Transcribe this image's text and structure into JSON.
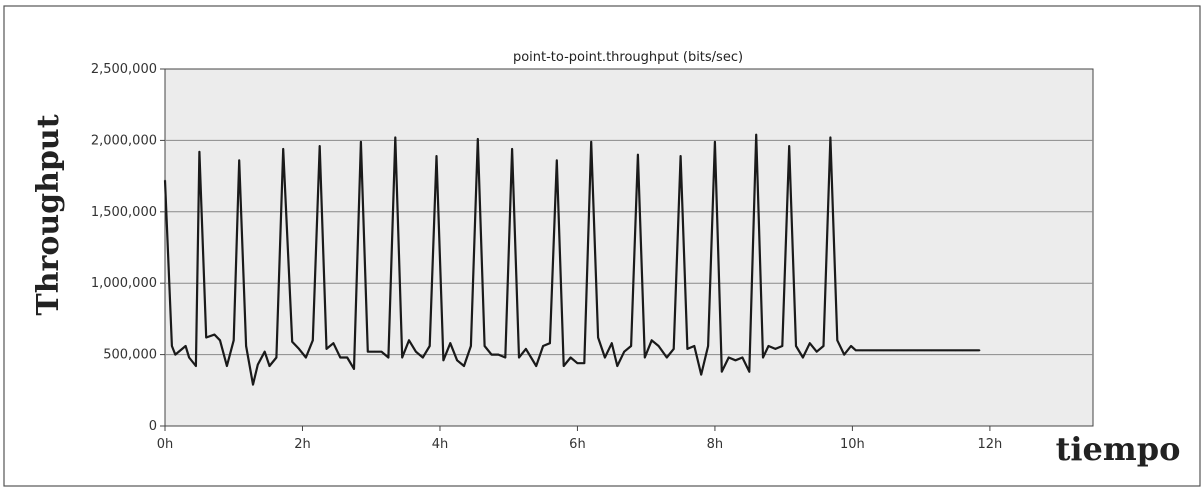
{
  "chart_data": {
    "type": "line",
    "title": "point-to-point.throughput (bits/sec)",
    "xlabel": "tiempo",
    "ylabel": "Throughput",
    "xlim": [
      0,
      13.5
    ],
    "ylim": [
      0,
      2500000
    ],
    "grid": true,
    "x_tick_labels": [
      "0h",
      "2h",
      "4h",
      "6h",
      "8h",
      "10h",
      "12h"
    ],
    "y_tick_labels": [
      "0",
      "500,000",
      "1,000,000",
      "1,500,000",
      "2,000,000",
      "2,500,000"
    ],
    "series": [
      {
        "color": "#1a1a1a",
        "x": [
          0.0,
          0.1,
          0.15,
          0.3,
          0.35,
          0.45,
          0.5,
          0.6,
          0.72,
          0.8,
          0.9,
          1.0,
          1.08,
          1.18,
          1.28,
          1.35,
          1.45,
          1.52,
          1.62,
          1.72,
          1.85,
          1.95,
          2.05,
          2.15,
          2.25,
          2.35,
          2.45,
          2.55,
          2.65,
          2.75,
          2.85,
          2.95,
          3.05,
          3.15,
          3.25,
          3.35,
          3.45,
          3.55,
          3.65,
          3.75,
          3.85,
          3.95,
          4.05,
          4.15,
          4.25,
          4.35,
          4.45,
          4.55,
          4.65,
          4.75,
          4.85,
          4.95,
          5.05,
          5.15,
          5.25,
          5.4,
          5.5,
          5.6,
          5.7,
          5.8,
          5.9,
          6.0,
          6.1,
          6.2,
          6.3,
          6.4,
          6.5,
          6.58,
          6.68,
          6.78,
          6.88,
          6.98,
          7.08,
          7.18,
          7.3,
          7.4,
          7.5,
          7.6,
          7.7,
          7.8,
          7.9,
          8.0,
          8.1,
          8.2,
          8.3,
          8.4,
          8.5,
          8.6,
          8.7,
          8.78,
          8.88,
          8.98,
          9.08,
          9.18,
          9.28,
          9.38,
          9.48,
          9.58,
          9.68,
          9.78,
          9.88,
          9.98,
          10.05,
          10.15,
          10.25,
          10.35,
          10.45,
          10.55,
          10.65,
          10.75,
          10.85,
          10.95,
          11.05,
          11.15,
          11.25,
          11.38,
          11.5,
          11.6,
          11.72,
          11.85
        ],
        "y": [
          1720000,
          560000,
          500000,
          560000,
          480000,
          420000,
          1920000,
          620000,
          640000,
          600000,
          420000,
          600000,
          1860000,
          560000,
          290000,
          430000,
          520000,
          420000,
          480000,
          1940000,
          590000,
          540000,
          480000,
          600000,
          1960000,
          540000,
          580000,
          480000,
          480000,
          400000,
          1990000,
          520000,
          520000,
          520000,
          480000,
          2020000,
          480000,
          600000,
          520000,
          480000,
          560000,
          1890000,
          460000,
          580000,
          460000,
          420000,
          560000,
          2010000,
          560000,
          500000,
          500000,
          480000,
          1940000,
          480000,
          540000,
          420000,
          560000,
          580000,
          1860000,
          420000,
          480000,
          440000,
          440000,
          1990000,
          620000,
          480000,
          580000,
          420000,
          520000,
          560000,
          1900000,
          480000,
          600000,
          560000,
          480000,
          540000,
          1890000,
          540000,
          560000,
          360000,
          560000,
          1990000,
          380000,
          480000,
          460000,
          480000,
          380000,
          2040000,
          480000,
          560000,
          540000,
          560000,
          1960000,
          560000,
          480000,
          580000,
          520000,
          560000,
          2020000,
          600000,
          500000,
          560000,
          530000,
          530000,
          530000,
          530000,
          530000,
          530000,
          530000,
          530000,
          530000,
          530000,
          530000,
          530000,
          530000,
          530000,
          530000,
          530000,
          530000,
          530000
        ]
      }
    ]
  }
}
